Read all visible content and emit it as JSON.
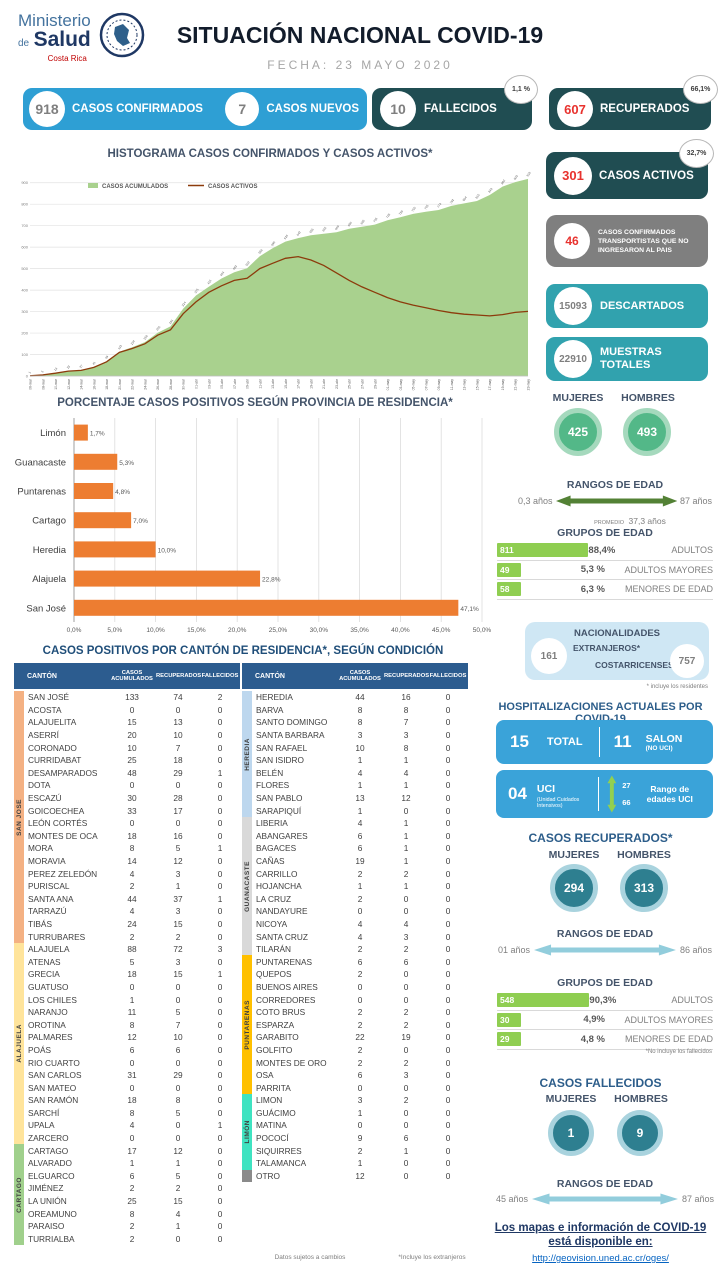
{
  "colors": {
    "accent_blue": "#2e9fd4",
    "dark_teal": "#204d52",
    "teal": "#31a2ae",
    "gray_card": "#7f7f7f",
    "hosp_blue": "#3aa3d9",
    "orange": "#ed7d31",
    "green_area": "#a9d18e",
    "active_line": "#8c3b0c",
    "table_header_blue": "#2c5c8f",
    "green_bar": "#8fce51",
    "arrow_green": "#538135",
    "arrow_light_blue": "#92cddc"
  },
  "header": {
    "ministerio": "Ministerio",
    "de": "de",
    "salud": "Salud",
    "costa_rica": "Costa Rica",
    "title": "SITUACIÓN NACIONAL COVID-19",
    "fecha": "FECHA: 23 MAYO 2020"
  },
  "stat_cards": {
    "confirmados": {
      "value": "918",
      "label": "CASOS CONFIRMADOS"
    },
    "nuevos": {
      "value": "7",
      "label": "CASOS NUEVOS"
    },
    "fallecidos": {
      "value": "10",
      "label": "FALLECIDOS",
      "badge": "1,1 %"
    },
    "recuperados": {
      "value": "607",
      "label": "RECUPERADOS",
      "badge": "66,1%"
    }
  },
  "right_column": {
    "activos": {
      "value": "301",
      "label": "CASOS ACTIVOS",
      "badge": "32,7%"
    },
    "transportistas": {
      "value": "46",
      "label": "CASOS CONFIRMADOS TRANSPORTISTAS QUE NO INGRESARON AL PAIS"
    },
    "descartados": {
      "value": "15093",
      "label": "DESCARTADOS"
    },
    "muestras": {
      "value": "22910",
      "label": "MUESTRAS TOTALES"
    }
  },
  "confirmados_detalle": {
    "mujeres_label": "MUJERES",
    "hombres_label": "HOMBRES",
    "mujeres": "425",
    "hombres": "493",
    "rangos": {
      "title": "RANGOS DE EDAD",
      "min": "0,3 años",
      "max": "87 años",
      "promedio_label": "PROMEDIO",
      "promedio": "37,3 años"
    },
    "grupos": {
      "title": "GRUPOS DE EDAD",
      "rows": [
        {
          "count": "811",
          "pct": "88,4%",
          "label": "ADULTOS",
          "bar": 88.4
        },
        {
          "count": "49",
          "pct": "5,3 %",
          "label": "ADULTOS MAYORES",
          "bar": 5.3
        },
        {
          "count": "58",
          "pct": "6,3 %",
          "label": "MENORES DE EDAD",
          "bar": 6.3
        }
      ]
    }
  },
  "nacionalidades": {
    "title": "NACIONALIDADES",
    "extranjeros": "161",
    "extranjeros_label": "EXTRANJEROS*",
    "costarricenses": "757",
    "costarricenses_label": "COSTARRICENSES",
    "footnote": "* incluye los residentes"
  },
  "hospitalizaciones": {
    "title": "HOSPITALIZACIONES ACTUALES POR COVID-19",
    "total": {
      "value": "15",
      "label": "TOTAL"
    },
    "salon": {
      "value": "11",
      "label": "SALON",
      "sub": "(NO UCI)"
    },
    "uci": {
      "value": "04",
      "label": "UCI",
      "sub": "(Unidad Cuidados Intensivos)",
      "age_min": "27",
      "age_max": "66",
      "range_label": "Rango de edades UCI"
    }
  },
  "recuperados_detalle": {
    "title": "CASOS RECUPERADOS*",
    "mujeres_label": "MUJERES",
    "hombres_label": "HOMBRES",
    "mujeres": "294",
    "hombres": "313",
    "rangos": {
      "title": "RANGOS DE EDAD",
      "min": "01 años",
      "max": "86 años"
    },
    "grupos": {
      "title": "GRUPOS DE EDAD",
      "rows": [
        {
          "count": "548",
          "pct": "90,3%",
          "label": "ADULTOS",
          "bar": 90.3
        },
        {
          "count": "30",
          "pct": "4,9%",
          "label": "ADULTOS MAYORES",
          "bar": 4.9
        },
        {
          "count": "29",
          "pct": "4,8 %",
          "label": "MENORES DE EDAD",
          "bar": 4.8
        }
      ]
    },
    "footnote": "*No incluye los fallecidos"
  },
  "fallecidos_detalle": {
    "title": "CASOS FALLECIDOS",
    "mujeres_label": "MUJERES",
    "hombres_label": "HOMBRES",
    "mujeres": "1",
    "hombres": "9",
    "rangos": {
      "title": "RANGOS DE EDAD",
      "min": "45 años",
      "max": "87 años"
    }
  },
  "footer": {
    "line1": "Los mapas e información de COVID-19",
    "line2": "está disponible en:",
    "link": "http://geovision.uned.ac.cr/oges/"
  },
  "chart_data": [
    {
      "type": "area",
      "title": "HISTOGRAMA CASOS CONFIRMADOS Y CASOS ACTIVOS*",
      "x": [
        "06-mar",
        "08-mar",
        "10-mar",
        "12-mar",
        "14-mar",
        "16-mar",
        "18-mar",
        "20-mar",
        "22-mar",
        "24-mar",
        "26-mar",
        "28-mar",
        "30-mar",
        "01-abr",
        "03-abr",
        "05-abr",
        "07-abr",
        "09-abr",
        "11-abr",
        "13-abr",
        "15-abr",
        "17-abr",
        "19-abr",
        "21-abr",
        "23-abr",
        "25-abr",
        "27-abr",
        "29-abr",
        "01-may",
        "03-may",
        "05-may",
        "07-may",
        "09-may",
        "11-may",
        "13-may",
        "15-may",
        "17-may",
        "19-may",
        "21-may",
        "23-may"
      ],
      "series": [
        {
          "name": "CASOS ACUMULADOS",
          "type": "area",
          "color": "#a9d18e",
          "values": [
            1,
            5,
            13,
            23,
            27,
            41,
            69,
            113,
            134,
            158,
            201,
            231,
            314,
            375,
            416,
            454,
            483,
            502,
            558,
            595,
            626,
            642,
            655,
            662,
            669,
            686,
            695,
            705,
            725,
            739,
            755,
            765,
            773,
            792,
            804,
            815,
            843,
            882,
            903,
            918
          ]
        },
        {
          "name": "CASOS ACTIVOS",
          "type": "line",
          "color": "#8c3b0c",
          "values": [
            1,
            5,
            13,
            23,
            26,
            40,
            66,
            110,
            128,
            150,
            190,
            215,
            290,
            345,
            390,
            420,
            445,
            455,
            500,
            525,
            548,
            556,
            540,
            515,
            480,
            445,
            415,
            390,
            365,
            345,
            330,
            318,
            305,
            295,
            288,
            284,
            280,
            286,
            296,
            301
          ]
        }
      ],
      "ylim": [
        0,
        950
      ],
      "grid": true,
      "legend_position": "top-left"
    },
    {
      "type": "bar",
      "orientation": "horizontal",
      "title": "PORCENTAJE CASOS POSITIVOS SEGÚN PROVINCIA DE RESIDENCIA*",
      "categories": [
        "Limón",
        "Guanacaste",
        "Puntarenas",
        "Cartago",
        "Heredia",
        "Alajuela",
        "San José"
      ],
      "values": [
        1.7,
        5.3,
        4.8,
        7.0,
        10.0,
        22.8,
        47.1
      ],
      "value_labels": [
        "1,7%",
        "5,3%",
        "4,8%",
        "7,0%",
        "10,0%",
        "22,8%",
        "47,1%"
      ],
      "xlim": [
        0,
        50
      ],
      "x_ticks": [
        "0,0%",
        "5,0%",
        "10,0%",
        "15,0%",
        "20,0%",
        "25,0%",
        "30,0%",
        "35,0%",
        "40,0%",
        "45,0%",
        "50,0%"
      ],
      "color": "#ed7d31",
      "xlabel": "",
      "ylabel": ""
    }
  ],
  "canton_table": {
    "title": "CASOS POSITIVOS POR CANTÓN DE RESIDENCIA*, SEGÚN CONDICIÓN",
    "headers": [
      "CANTÓN",
      "CASOS ACUMULADOS",
      "RECUPERADOS",
      "FALLECIDOS"
    ],
    "left_groups": [
      {
        "label": "SAN JOSE",
        "color": "#f4b183",
        "rows": [
          [
            "SAN JOSÉ",
            "133",
            "74",
            "2"
          ],
          [
            "ACOSTA",
            "0",
            "0",
            "0"
          ],
          [
            "ALAJUELITA",
            "15",
            "13",
            "0"
          ],
          [
            "ASERRÍ",
            "20",
            "10",
            "0"
          ],
          [
            "CORONADO",
            "10",
            "7",
            "0"
          ],
          [
            "CURRIDABAT",
            "25",
            "18",
            "0"
          ],
          [
            "DESAMPARADOS",
            "48",
            "29",
            "1"
          ],
          [
            "DOTA",
            "0",
            "0",
            "0"
          ],
          [
            "ESCAZÚ",
            "30",
            "28",
            "0"
          ],
          [
            "GOICOECHEA",
            "33",
            "17",
            "0"
          ],
          [
            "LEÓN CORTÉS",
            "0",
            "0",
            "0"
          ],
          [
            "MONTES DE OCA",
            "18",
            "16",
            "0"
          ],
          [
            "MORA",
            "8",
            "5",
            "1"
          ],
          [
            "MORAVIA",
            "14",
            "12",
            "0"
          ],
          [
            "PEREZ ZELEDÓN",
            "4",
            "3",
            "0"
          ],
          [
            "PURISCAL",
            "2",
            "1",
            "0"
          ],
          [
            "SANTA ANA",
            "44",
            "37",
            "1"
          ],
          [
            "TARRAZÚ",
            "4",
            "3",
            "0"
          ],
          [
            "TIBÁS",
            "24",
            "15",
            "0"
          ],
          [
            "TURRUBARES",
            "2",
            "2",
            "0"
          ]
        ]
      },
      {
        "label": "ALAJUELA",
        "color": "#ffe49b",
        "rows": [
          [
            "ALAJUELA",
            "88",
            "72",
            "3"
          ],
          [
            "ATENAS",
            "5",
            "3",
            "0"
          ],
          [
            "GRECIA",
            "18",
            "15",
            "1"
          ],
          [
            "GUATUSO",
            "0",
            "0",
            "0"
          ],
          [
            "LOS CHILES",
            "1",
            "0",
            "0"
          ],
          [
            "NARANJO",
            "11",
            "5",
            "0"
          ],
          [
            "OROTINA",
            "8",
            "7",
            "0"
          ],
          [
            "PALMARES",
            "12",
            "10",
            "0"
          ],
          [
            "POÁS",
            "6",
            "6",
            "0"
          ],
          [
            "RIO CUARTO",
            "0",
            "0",
            "0"
          ],
          [
            "SAN CARLOS",
            "31",
            "29",
            "0"
          ],
          [
            "SAN MATEO",
            "0",
            "0",
            "0"
          ],
          [
            "SAN RAMÓN",
            "18",
            "8",
            "0"
          ],
          [
            "SARCHÍ",
            "8",
            "5",
            "0"
          ],
          [
            "UPALA",
            "4",
            "0",
            "1"
          ],
          [
            "ZARCERO",
            "0",
            "0",
            "0"
          ]
        ]
      },
      {
        "label": "CARTAGO",
        "color": "#a0d08c",
        "rows": [
          [
            "CARTAGO",
            "17",
            "12",
            "0"
          ],
          [
            "ALVARADO",
            "1",
            "1",
            "0"
          ],
          [
            "ELGUARCO",
            "6",
            "5",
            "0"
          ],
          [
            "JIMÉNEZ",
            "2",
            "2",
            "0"
          ],
          [
            "LA UNIÓN",
            "25",
            "15",
            "0"
          ],
          [
            "OREAMUNO",
            "8",
            "4",
            "0"
          ],
          [
            "PARAISO",
            "2",
            "1",
            "0"
          ],
          [
            "TURRIALBA",
            "2",
            "0",
            "0"
          ]
        ]
      }
    ],
    "right_groups": [
      {
        "label": "HEREDIA",
        "color": "#bdd7ee",
        "rows": [
          [
            "HEREDIA",
            "44",
            "16",
            "0"
          ],
          [
            "BARVA",
            "8",
            "8",
            "0"
          ],
          [
            "SANTO DOMINGO",
            "8",
            "7",
            "0"
          ],
          [
            "SANTA BARBARA",
            "3",
            "3",
            "0"
          ],
          [
            "SAN RAFAEL",
            "10",
            "8",
            "0"
          ],
          [
            "SAN ISIDRO",
            "1",
            "1",
            "0"
          ],
          [
            "BELÉN",
            "4",
            "4",
            "0"
          ],
          [
            "FLORES",
            "1",
            "1",
            "0"
          ],
          [
            "SAN PABLO",
            "13",
            "12",
            "0"
          ],
          [
            "SARAPIQUÍ",
            "1",
            "0",
            "0"
          ]
        ]
      },
      {
        "label": "GUANACASTE",
        "color": "#d9d9d9",
        "rows": [
          [
            "LIBERIA",
            "4",
            "1",
            "0"
          ],
          [
            "ABANGARES",
            "6",
            "1",
            "0"
          ],
          [
            "BAGACES",
            "6",
            "1",
            "0"
          ],
          [
            "CAÑAS",
            "19",
            "1",
            "0"
          ],
          [
            "CARRILLO",
            "2",
            "2",
            "0"
          ],
          [
            "HOJANCHA",
            "1",
            "1",
            "0"
          ],
          [
            "LA CRUZ",
            "2",
            "0",
            "0"
          ],
          [
            "NANDAYURE",
            "0",
            "0",
            "0"
          ],
          [
            "NICOYA",
            "4",
            "4",
            "0"
          ],
          [
            "SANTA CRUZ",
            "4",
            "3",
            "0"
          ],
          [
            "TILARÁN",
            "2",
            "2",
            "0"
          ]
        ]
      },
      {
        "label": "PUNTARENAS",
        "color": "#ffc000",
        "rows": [
          [
            "PUNTARENAS",
            "6",
            "6",
            "0"
          ],
          [
            "QUEPOS",
            "2",
            "0",
            "0"
          ],
          [
            "BUENOS AIRES",
            "0",
            "0",
            "0"
          ],
          [
            "CORREDORES",
            "0",
            "0",
            "0"
          ],
          [
            "COTO BRUS",
            "2",
            "2",
            "0"
          ],
          [
            "ESPARZA",
            "2",
            "2",
            "0"
          ],
          [
            "GARABITO",
            "22",
            "19",
            "0"
          ],
          [
            "GOLFITO",
            "2",
            "0",
            "0"
          ],
          [
            "MONTES DE ORO",
            "2",
            "2",
            "0"
          ],
          [
            "OSA",
            "6",
            "3",
            "0"
          ],
          [
            "PARRITA",
            "0",
            "0",
            "0"
          ]
        ]
      },
      {
        "label": "LIMÓN",
        "color": "#3fe3c1",
        "rows": [
          [
            "LIMON",
            "3",
            "2",
            "0"
          ],
          [
            "GUÁCIMO",
            "1",
            "0",
            "0"
          ],
          [
            "MATINA",
            "0",
            "0",
            "0"
          ],
          [
            "POCOCÍ",
            "9",
            "6",
            "0"
          ],
          [
            "SIQUIRRES",
            "2",
            "1",
            "0"
          ],
          [
            "TALAMANCA",
            "1",
            "0",
            "0"
          ]
        ]
      },
      {
        "label": "",
        "color": "#8a8a8a",
        "rows": [
          [
            "OTRO",
            "12",
            "0",
            "0"
          ]
        ]
      }
    ],
    "footnotes": [
      "Datos sujetos a cambios",
      "*Incluye los extranjeros"
    ]
  }
}
